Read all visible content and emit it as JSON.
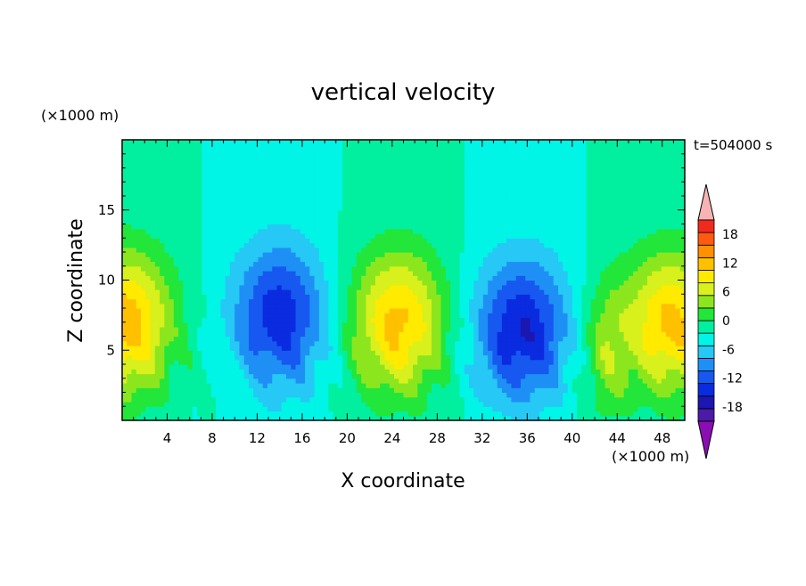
{
  "chart_data": {
    "type": "heatmap",
    "title": "vertical velocity",
    "time_label": "t=504000 s",
    "xlabel": "X coordinate",
    "ylabel": "Z coordinate",
    "x_unit_label": "(×1000 m)",
    "y_unit_label": "(×1000 m)",
    "xlim": [
      0,
      50
    ],
    "ylim": [
      0,
      20
    ],
    "x_ticks": [
      4,
      8,
      12,
      16,
      20,
      24,
      28,
      32,
      36,
      40,
      44,
      48
    ],
    "y_ticks": [
      5,
      10,
      15
    ],
    "colorbar": {
      "ticks": [
        -18,
        -12,
        -6,
        0,
        6,
        12,
        18
      ],
      "levels": [
        -21,
        -18,
        -15,
        -12,
        -9,
        -6,
        -3,
        0,
        3,
        6,
        9,
        12,
        15,
        18,
        21
      ],
      "colors": [
        "#8b0eb4",
        "#4b1aa6",
        "#1d16b0",
        "#0a2be0",
        "#1658f0",
        "#1e90f5",
        "#26c8f5",
        "#00f5e6",
        "#00f0a0",
        "#22e63a",
        "#8ce61e",
        "#d8f01c",
        "#ffea00",
        "#ffc000",
        "#ff9000",
        "#ff5a10",
        "#f02a1e",
        "#f8b4b4"
      ],
      "extend": "both"
    },
    "features": [
      {
        "x": 0.3,
        "z": 7,
        "w": 17
      },
      {
        "x": 14,
        "z": 7.5,
        "w": -14
      },
      {
        "x": 24.5,
        "z": 7,
        "w": 16
      },
      {
        "x": 35.5,
        "z": 6.5,
        "w": -15
      },
      {
        "x": 43,
        "z": 5,
        "w": 7
      },
      {
        "x": 48.8,
        "z": 7,
        "w": 16
      }
    ]
  }
}
